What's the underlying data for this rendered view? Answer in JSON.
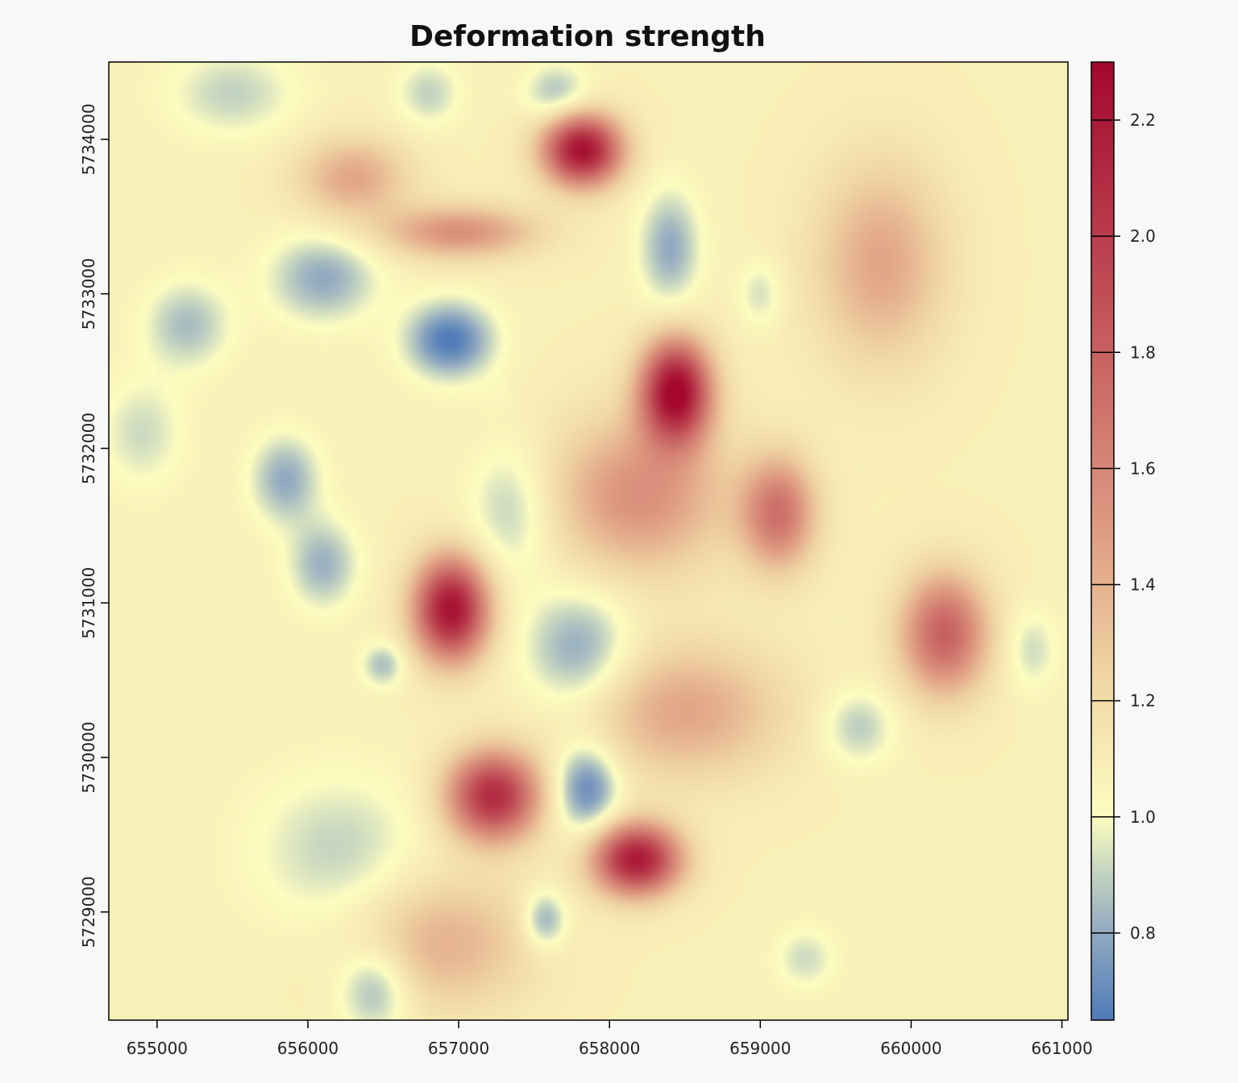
{
  "chart_data": {
    "type": "heatmap",
    "title": "Deformation strength",
    "xlabel": "",
    "ylabel": "",
    "xlim": [
      654680,
      661040
    ],
    "ylim": [
      5728300,
      5734500
    ],
    "x_ticks": [
      655000,
      656000,
      657000,
      658000,
      659000,
      660000,
      661000
    ],
    "y_ticks": [
      5729000,
      5730000,
      5731000,
      5732000,
      5733000,
      5734000
    ],
    "colorbar": {
      "range": [
        0.65,
        2.3
      ],
      "ticks": [
        0.8,
        1.0,
        1.2,
        1.4,
        1.6,
        1.8,
        2.0,
        2.2
      ],
      "tick_labels": [
        "0.8",
        "1.0",
        "1.2",
        "1.4",
        "1.6",
        "1.8",
        "2.0",
        "2.2"
      ],
      "palette": [
        "#4f7bb8",
        "#91a9c0",
        "#c2d2c0",
        "#fdfdc0",
        "#f0d4a3",
        "#de9a82",
        "#c04e56",
        "#a4082d"
      ],
      "palette_stops": [
        0.65,
        0.8,
        0.9,
        1.0,
        1.25,
        1.5,
        1.9,
        2.3
      ]
    },
    "background_value": 1.08,
    "features": [
      {
        "x": 657820,
        "y": 5733930,
        "value": 2.25,
        "sx": 180,
        "sy": 160
      },
      {
        "x": 658440,
        "y": 5732370,
        "value": 2.3,
        "sx": 160,
        "sy": 230
      },
      {
        "x": 656950,
        "y": 5730960,
        "value": 2.25,
        "sx": 170,
        "sy": 230
      },
      {
        "x": 657230,
        "y": 5729750,
        "value": 2.1,
        "sx": 210,
        "sy": 200
      },
      {
        "x": 658180,
        "y": 5729340,
        "value": 2.2,
        "sx": 200,
        "sy": 160
      },
      {
        "x": 660220,
        "y": 5730800,
        "value": 1.8,
        "sx": 200,
        "sy": 270
      },
      {
        "x": 659120,
        "y": 5731580,
        "value": 1.7,
        "sx": 170,
        "sy": 250
      },
      {
        "x": 658200,
        "y": 5731700,
        "value": 1.55,
        "sx": 400,
        "sy": 350
      },
      {
        "x": 657000,
        "y": 5733400,
        "value": 1.55,
        "sx": 350,
        "sy": 120
      },
      {
        "x": 656300,
        "y": 5733750,
        "value": 1.45,
        "sx": 250,
        "sy": 180
      },
      {
        "x": 659800,
        "y": 5733200,
        "value": 1.45,
        "sx": 300,
        "sy": 450
      },
      {
        "x": 658500,
        "y": 5730300,
        "value": 1.45,
        "sx": 450,
        "sy": 300
      },
      {
        "x": 656900,
        "y": 5728800,
        "value": 1.4,
        "sx": 400,
        "sy": 300
      },
      {
        "x": 656940,
        "y": 5732700,
        "value": 0.65,
        "sx": 200,
        "sy": 170
      },
      {
        "x": 657850,
        "y": 5729800,
        "value": 0.68,
        "sx": 150,
        "sy": 200
      },
      {
        "x": 657800,
        "y": 5730700,
        "value": 0.78,
        "sx": 250,
        "sy": 270
      },
      {
        "x": 656100,
        "y": 5733100,
        "value": 0.8,
        "sx": 250,
        "sy": 200
      },
      {
        "x": 655850,
        "y": 5731800,
        "value": 0.8,
        "sx": 160,
        "sy": 200
      },
      {
        "x": 656100,
        "y": 5731250,
        "value": 0.82,
        "sx": 160,
        "sy": 200
      },
      {
        "x": 655200,
        "y": 5732800,
        "value": 0.85,
        "sx": 200,
        "sy": 200
      },
      {
        "x": 657350,
        "y": 5731600,
        "value": 0.88,
        "sx": 200,
        "sy": 300
      },
      {
        "x": 658400,
        "y": 5733300,
        "value": 0.8,
        "sx": 140,
        "sy": 260
      },
      {
        "x": 657650,
        "y": 5734300,
        "value": 0.85,
        "sx": 150,
        "sy": 130
      },
      {
        "x": 656450,
        "y": 5728500,
        "value": 0.8,
        "sx": 170,
        "sy": 200
      },
      {
        "x": 657570,
        "y": 5728950,
        "value": 0.78,
        "sx": 100,
        "sy": 130
      },
      {
        "x": 656500,
        "y": 5730600,
        "value": 0.85,
        "sx": 100,
        "sy": 100
      },
      {
        "x": 659650,
        "y": 5730200,
        "value": 0.88,
        "sx": 170,
        "sy": 170
      },
      {
        "x": 659300,
        "y": 5728700,
        "value": 0.92,
        "sx": 140,
        "sy": 140
      },
      {
        "x": 660800,
        "y": 5730700,
        "value": 0.92,
        "sx": 120,
        "sy": 180
      },
      {
        "x": 659000,
        "y": 5733000,
        "value": 0.93,
        "sx": 100,
        "sy": 150
      },
      {
        "x": 655500,
        "y": 5734300,
        "value": 0.9,
        "sx": 300,
        "sy": 200
      },
      {
        "x": 656800,
        "y": 5734300,
        "value": 0.9,
        "sx": 150,
        "sy": 150
      },
      {
        "x": 656200,
        "y": 5729400,
        "value": 0.9,
        "sx": 400,
        "sy": 350
      },
      {
        "x": 654900,
        "y": 5732100,
        "value": 0.92,
        "sx": 200,
        "sy": 250
      },
      {
        "x": 657250,
        "y": 5732350,
        "value": 1.05,
        "sx": 90,
        "sy": 90
      }
    ]
  }
}
